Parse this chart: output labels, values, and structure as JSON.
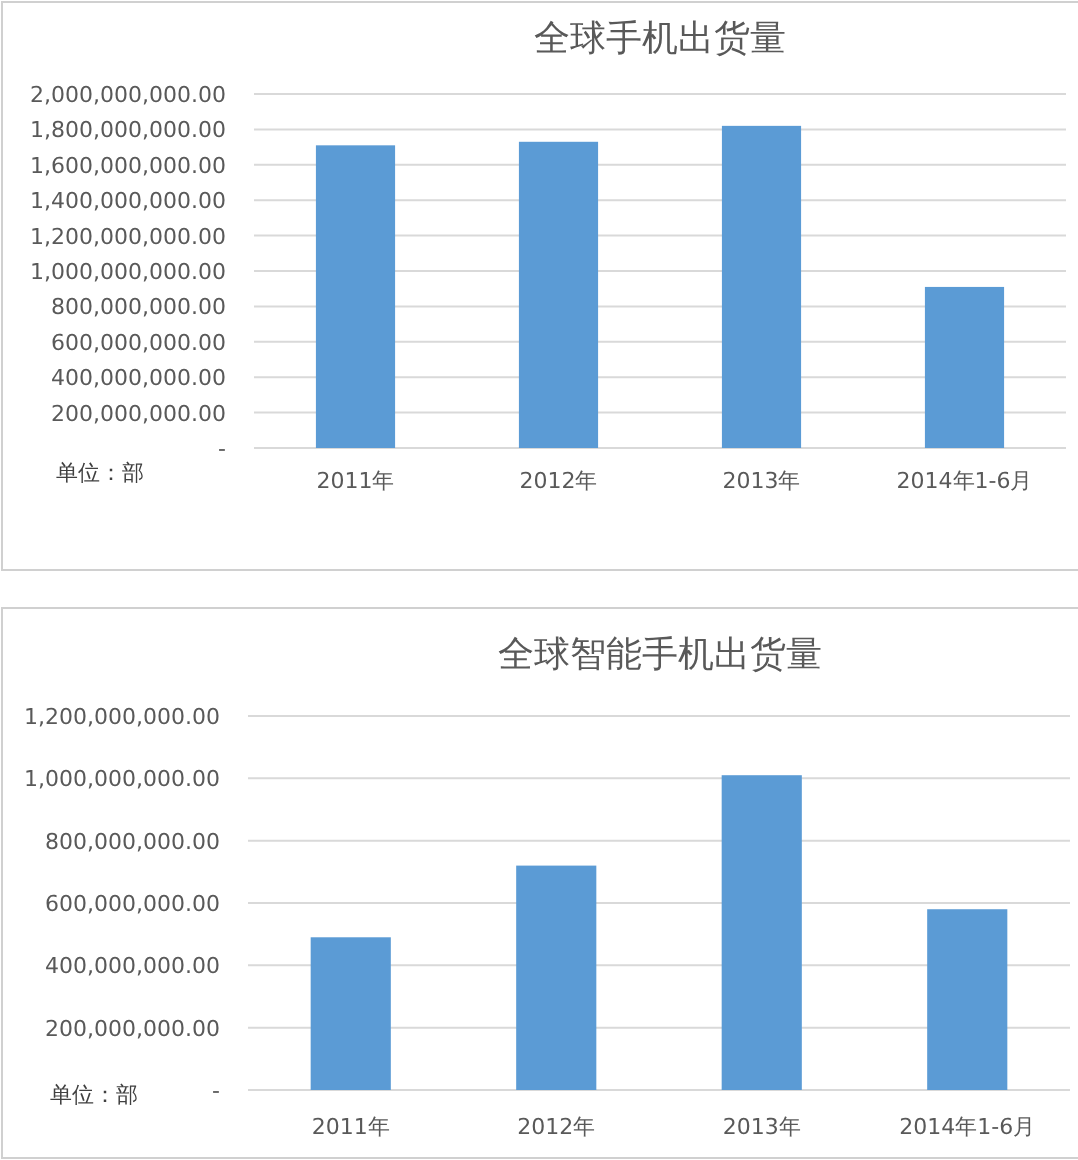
{
  "chart_data": [
    {
      "type": "bar",
      "title": "全球手机出货量",
      "categories": [
        "2011年",
        "2012年",
        "2013年",
        "2014年1-6月"
      ],
      "values": [
        1710000000,
        1730000000,
        1820000000,
        910000000
      ],
      "color": "#5b9bd5",
      "ylim": [
        0,
        2000000000
      ],
      "yticks": [
        {
          "value": 0,
          "label": "-"
        },
        {
          "value": 200000000,
          "label": "200,000,000.00"
        },
        {
          "value": 400000000,
          "label": "400,000,000.00"
        },
        {
          "value": 600000000,
          "label": "600,000,000.00"
        },
        {
          "value": 800000000,
          "label": "800,000,000.00"
        },
        {
          "value": 1000000000,
          "label": "1,000,000,000.00"
        },
        {
          "value": 1200000000,
          "label": "1,200,000,000.00"
        },
        {
          "value": 1400000000,
          "label": "1,400,000,000.00"
        },
        {
          "value": 1600000000,
          "label": "1,600,000,000.00"
        },
        {
          "value": 1800000000,
          "label": "1,800,000,000.00"
        },
        {
          "value": 2000000000,
          "label": "2,000,000,000.00"
        }
      ],
      "grid": "y",
      "annotations": [
        "单位：部"
      ]
    },
    {
      "type": "bar",
      "title": "全球智能手机出货量",
      "categories": [
        "2011年",
        "2012年",
        "2013年",
        "2014年1-6月"
      ],
      "values": [
        490000000,
        720000000,
        1010000000,
        580000000
      ],
      "color": "#5b9bd5",
      "ylim": [
        0,
        1200000000
      ],
      "yticks": [
        {
          "value": 0,
          "label": "-"
        },
        {
          "value": 200000000,
          "label": "200,000,000.00"
        },
        {
          "value": 400000000,
          "label": "400,000,000.00"
        },
        {
          "value": 600000000,
          "label": "600,000,000.00"
        },
        {
          "value": 800000000,
          "label": "800,000,000.00"
        },
        {
          "value": 1000000000,
          "label": "1,000,000,000.00"
        },
        {
          "value": 1200000000,
          "label": "1,200,000,000.00"
        }
      ],
      "grid": "y",
      "annotations": [
        "单位：部"
      ]
    }
  ]
}
